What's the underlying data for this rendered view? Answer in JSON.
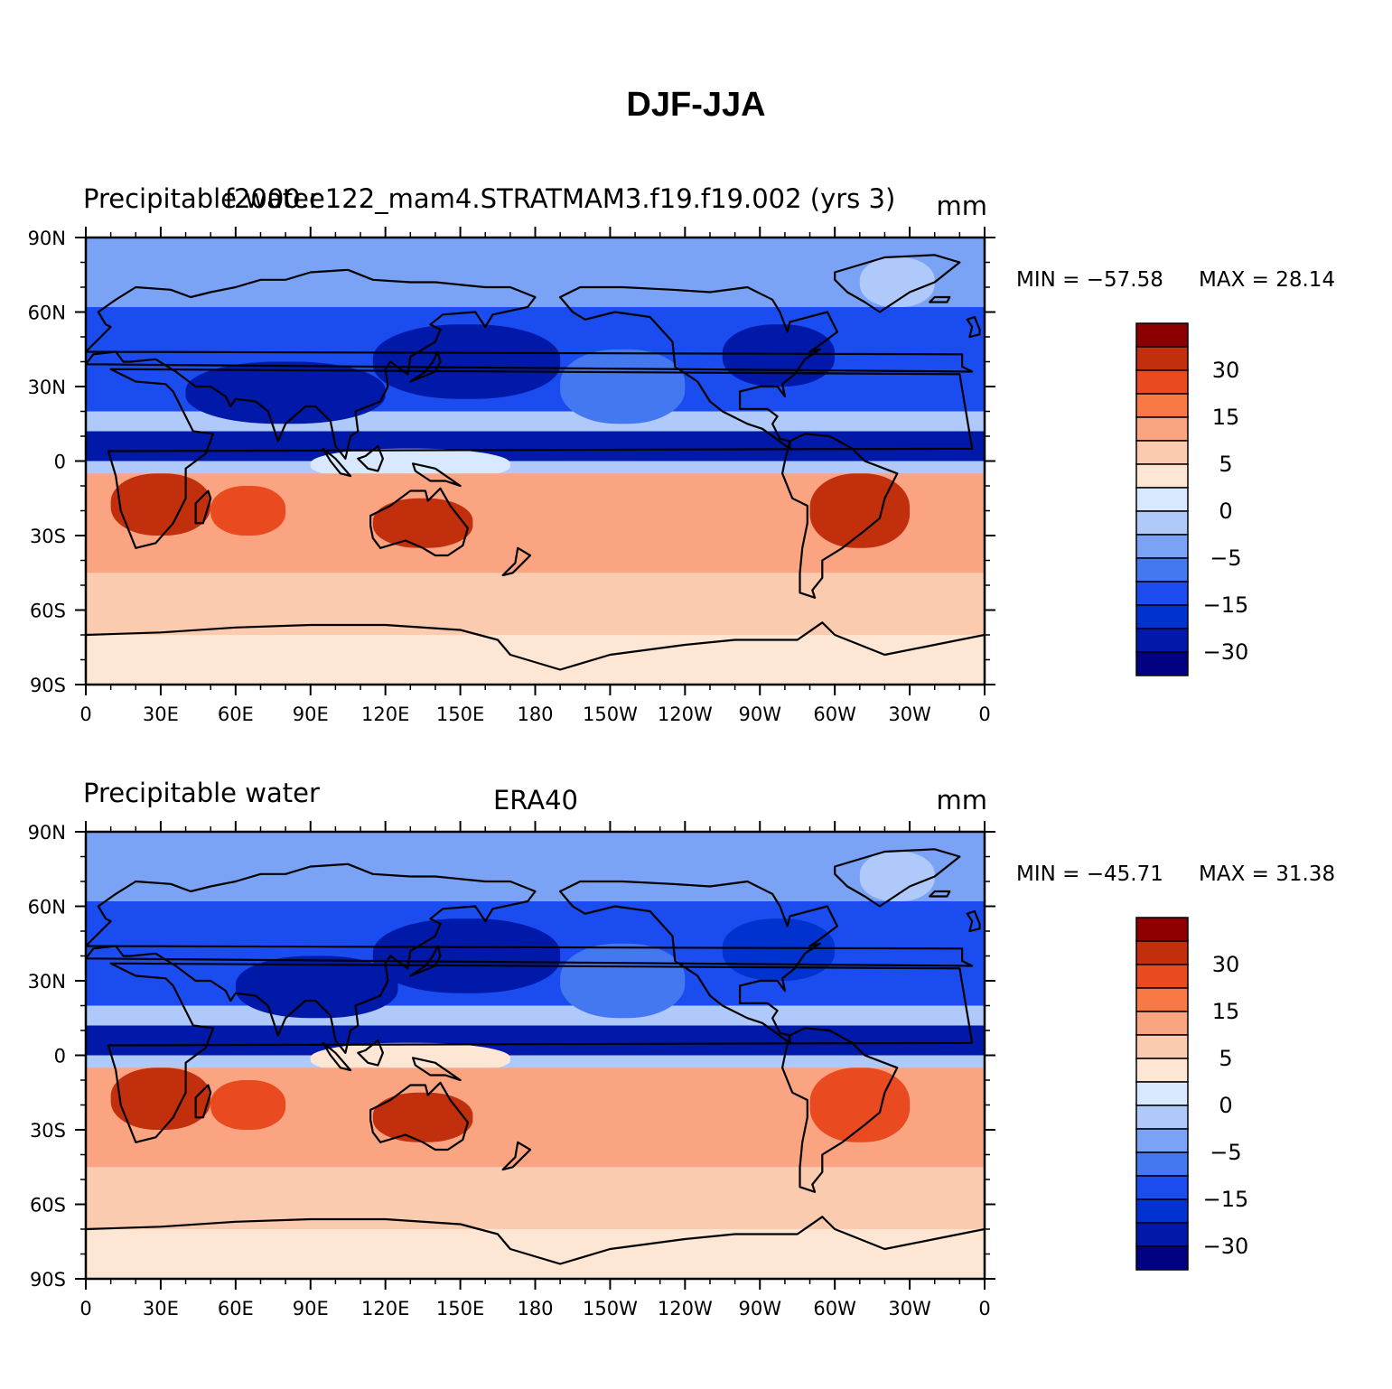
{
  "title": "DJF-JJA",
  "colors": {
    "levels": [
      "#000080",
      "#0019A8",
      "#0032D0",
      "#1A4CF0",
      "#4478F0",
      "#7AA2F5",
      "#B0C9FB",
      "#D8E8FE",
      "#FDE7D4",
      "#FBCBAF",
      "#FBA481",
      "#F87945",
      "#E94A20",
      "#C12F0D",
      "#8E0000"
    ],
    "coast": "#000000"
  },
  "panels": [
    {
      "left_title": "Precipitable water",
      "center_title": "f2000.e122_mam4.STRATMAM3.f19.f19.002 (yrs 3)",
      "units": "mm",
      "min_label": "MIN = −57.58",
      "max_label": "MAX =   28.14"
    },
    {
      "left_title": "Precipitable water",
      "center_title": "ERA40",
      "units": "mm",
      "min_label": "MIN = −45.71",
      "max_label": "MAX =   31.38"
    }
  ],
  "x_ticks": [
    "0",
    "30E",
    "60E",
    "90E",
    "120E",
    "150E",
    "180",
    "150W",
    "120W",
    "90W",
    "60W",
    "30W",
    "0"
  ],
  "y_ticks": [
    "90N",
    "60N",
    "30N",
    "0",
    "30S",
    "60S",
    "90S"
  ],
  "colorbar_labels": [
    "30",
    "15",
    "5",
    "0",
    "−5",
    "−15",
    "−30"
  ],
  "chart_data": [
    {
      "type": "heatmap",
      "title": "DJF-JJA",
      "left_title": "Precipitable water",
      "center_title": "f2000.e122_mam4.STRATMAM3.f19.f19.002 (yrs 3)",
      "units": "mm",
      "min": -57.58,
      "max": 28.14,
      "x_range": [
        "0",
        "0"
      ],
      "y_range": [
        "90S",
        "90N"
      ],
      "contour_levels": [
        -40,
        -30,
        -20,
        -15,
        -10,
        -5,
        -2,
        0,
        2,
        5,
        10,
        15,
        20,
        30,
        40
      ],
      "regions": [
        {
          "name": "polar-north",
          "lon": [
            0,
            360
          ],
          "lat": [
            62,
            90
          ],
          "value": -7
        },
        {
          "name": "north-midlat",
          "lon": [
            0,
            360
          ],
          "lat": [
            20,
            62
          ],
          "value": -17
        },
        {
          "name": "south-asia-core",
          "lon": [
            40,
            120
          ],
          "lat": [
            15,
            40
          ],
          "value": -35
        },
        {
          "name": "north-pacific-core",
          "lon": [
            115,
            190
          ],
          "lat": [
            25,
            55
          ],
          "value": -32
        },
        {
          "name": "north-america-core",
          "lon": [
            255,
            300
          ],
          "lat": [
            30,
            55
          ],
          "value": -30
        },
        {
          "name": "east-pacific-ridge",
          "lon": [
            190,
            240
          ],
          "lat": [
            15,
            45
          ],
          "value": -10
        },
        {
          "name": "greenland",
          "lon": [
            310,
            340
          ],
          "lat": [
            62,
            82
          ],
          "value": -3
        },
        {
          "name": "itcz-band",
          "lon": [
            0,
            360
          ],
          "lat": [
            0,
            12
          ],
          "value": -35
        },
        {
          "name": "maritime-continent",
          "lon": [
            90,
            170
          ],
          "lat": [
            -8,
            5
          ],
          "value": -1
        },
        {
          "name": "southern-tropics",
          "lon": [
            0,
            360
          ],
          "lat": [
            -45,
            -5
          ],
          "value": 7
        },
        {
          "name": "southern-africa",
          "lon": [
            10,
            50
          ],
          "lat": [
            -30,
            -5
          ],
          "value": 22
        },
        {
          "name": "south-indian-ocean",
          "lon": [
            50,
            80
          ],
          "lat": [
            -30,
            -10
          ],
          "value": 18
        },
        {
          "name": "australia",
          "lon": [
            115,
            155
          ],
          "lat": [
            -35,
            -15
          ],
          "value": 22
        },
        {
          "name": "south-america",
          "lon": [
            290,
            330
          ],
          "lat": [
            -35,
            -5
          ],
          "value": 22
        },
        {
          "name": "southern-ocean",
          "lon": [
            0,
            360
          ],
          "lat": [
            -70,
            -45
          ],
          "value": 3
        },
        {
          "name": "antarctica",
          "lon": [
            0,
            360
          ],
          "lat": [
            -90,
            -70
          ],
          "value": 1
        }
      ]
    },
    {
      "type": "heatmap",
      "title": "DJF-JJA",
      "left_title": "Precipitable water",
      "center_title": "ERA40",
      "units": "mm",
      "min": -45.71,
      "max": 31.38,
      "x_range": [
        "0",
        "0"
      ],
      "y_range": [
        "90S",
        "90N"
      ],
      "contour_levels": [
        -40,
        -30,
        -20,
        -15,
        -10,
        -5,
        -2,
        0,
        2,
        5,
        10,
        15,
        20,
        30,
        40
      ],
      "regions": [
        {
          "name": "polar-north",
          "lon": [
            0,
            360
          ],
          "lat": [
            62,
            90
          ],
          "value": -7
        },
        {
          "name": "north-midlat",
          "lon": [
            0,
            360
          ],
          "lat": [
            20,
            62
          ],
          "value": -17
        },
        {
          "name": "south-asia-core",
          "lon": [
            60,
            125
          ],
          "lat": [
            15,
            40
          ],
          "value": -32
        },
        {
          "name": "north-pacific-core",
          "lon": [
            115,
            190
          ],
          "lat": [
            25,
            55
          ],
          "value": -30
        },
        {
          "name": "north-america-core",
          "lon": [
            255,
            300
          ],
          "lat": [
            30,
            55
          ],
          "value": -28
        },
        {
          "name": "east-pacific-ridge",
          "lon": [
            190,
            240
          ],
          "lat": [
            15,
            45
          ],
          "value": -10
        },
        {
          "name": "greenland",
          "lon": [
            310,
            340
          ],
          "lat": [
            62,
            82
          ],
          "value": -3
        },
        {
          "name": "itcz-band",
          "lon": [
            0,
            360
          ],
          "lat": [
            0,
            12
          ],
          "value": -30
        },
        {
          "name": "maritime-continent",
          "lon": [
            90,
            170
          ],
          "lat": [
            -8,
            5
          ],
          "value": 1
        },
        {
          "name": "southern-tropics",
          "lon": [
            0,
            360
          ],
          "lat": [
            -45,
            -5
          ],
          "value": 8
        },
        {
          "name": "southern-africa",
          "lon": [
            10,
            50
          ],
          "lat": [
            -30,
            -5
          ],
          "value": 24
        },
        {
          "name": "south-indian-ocean",
          "lon": [
            50,
            80
          ],
          "lat": [
            -30,
            -10
          ],
          "value": 17
        },
        {
          "name": "australia",
          "lon": [
            115,
            155
          ],
          "lat": [
            -35,
            -15
          ],
          "value": 24
        },
        {
          "name": "south-america",
          "lon": [
            290,
            330
          ],
          "lat": [
            -35,
            -5
          ],
          "value": 17
        },
        {
          "name": "southern-ocean",
          "lon": [
            0,
            360
          ],
          "lat": [
            -70,
            -45
          ],
          "value": 4
        },
        {
          "name": "antarctica",
          "lon": [
            0,
            360
          ],
          "lat": [
            -90,
            -70
          ],
          "value": 1
        }
      ]
    }
  ]
}
